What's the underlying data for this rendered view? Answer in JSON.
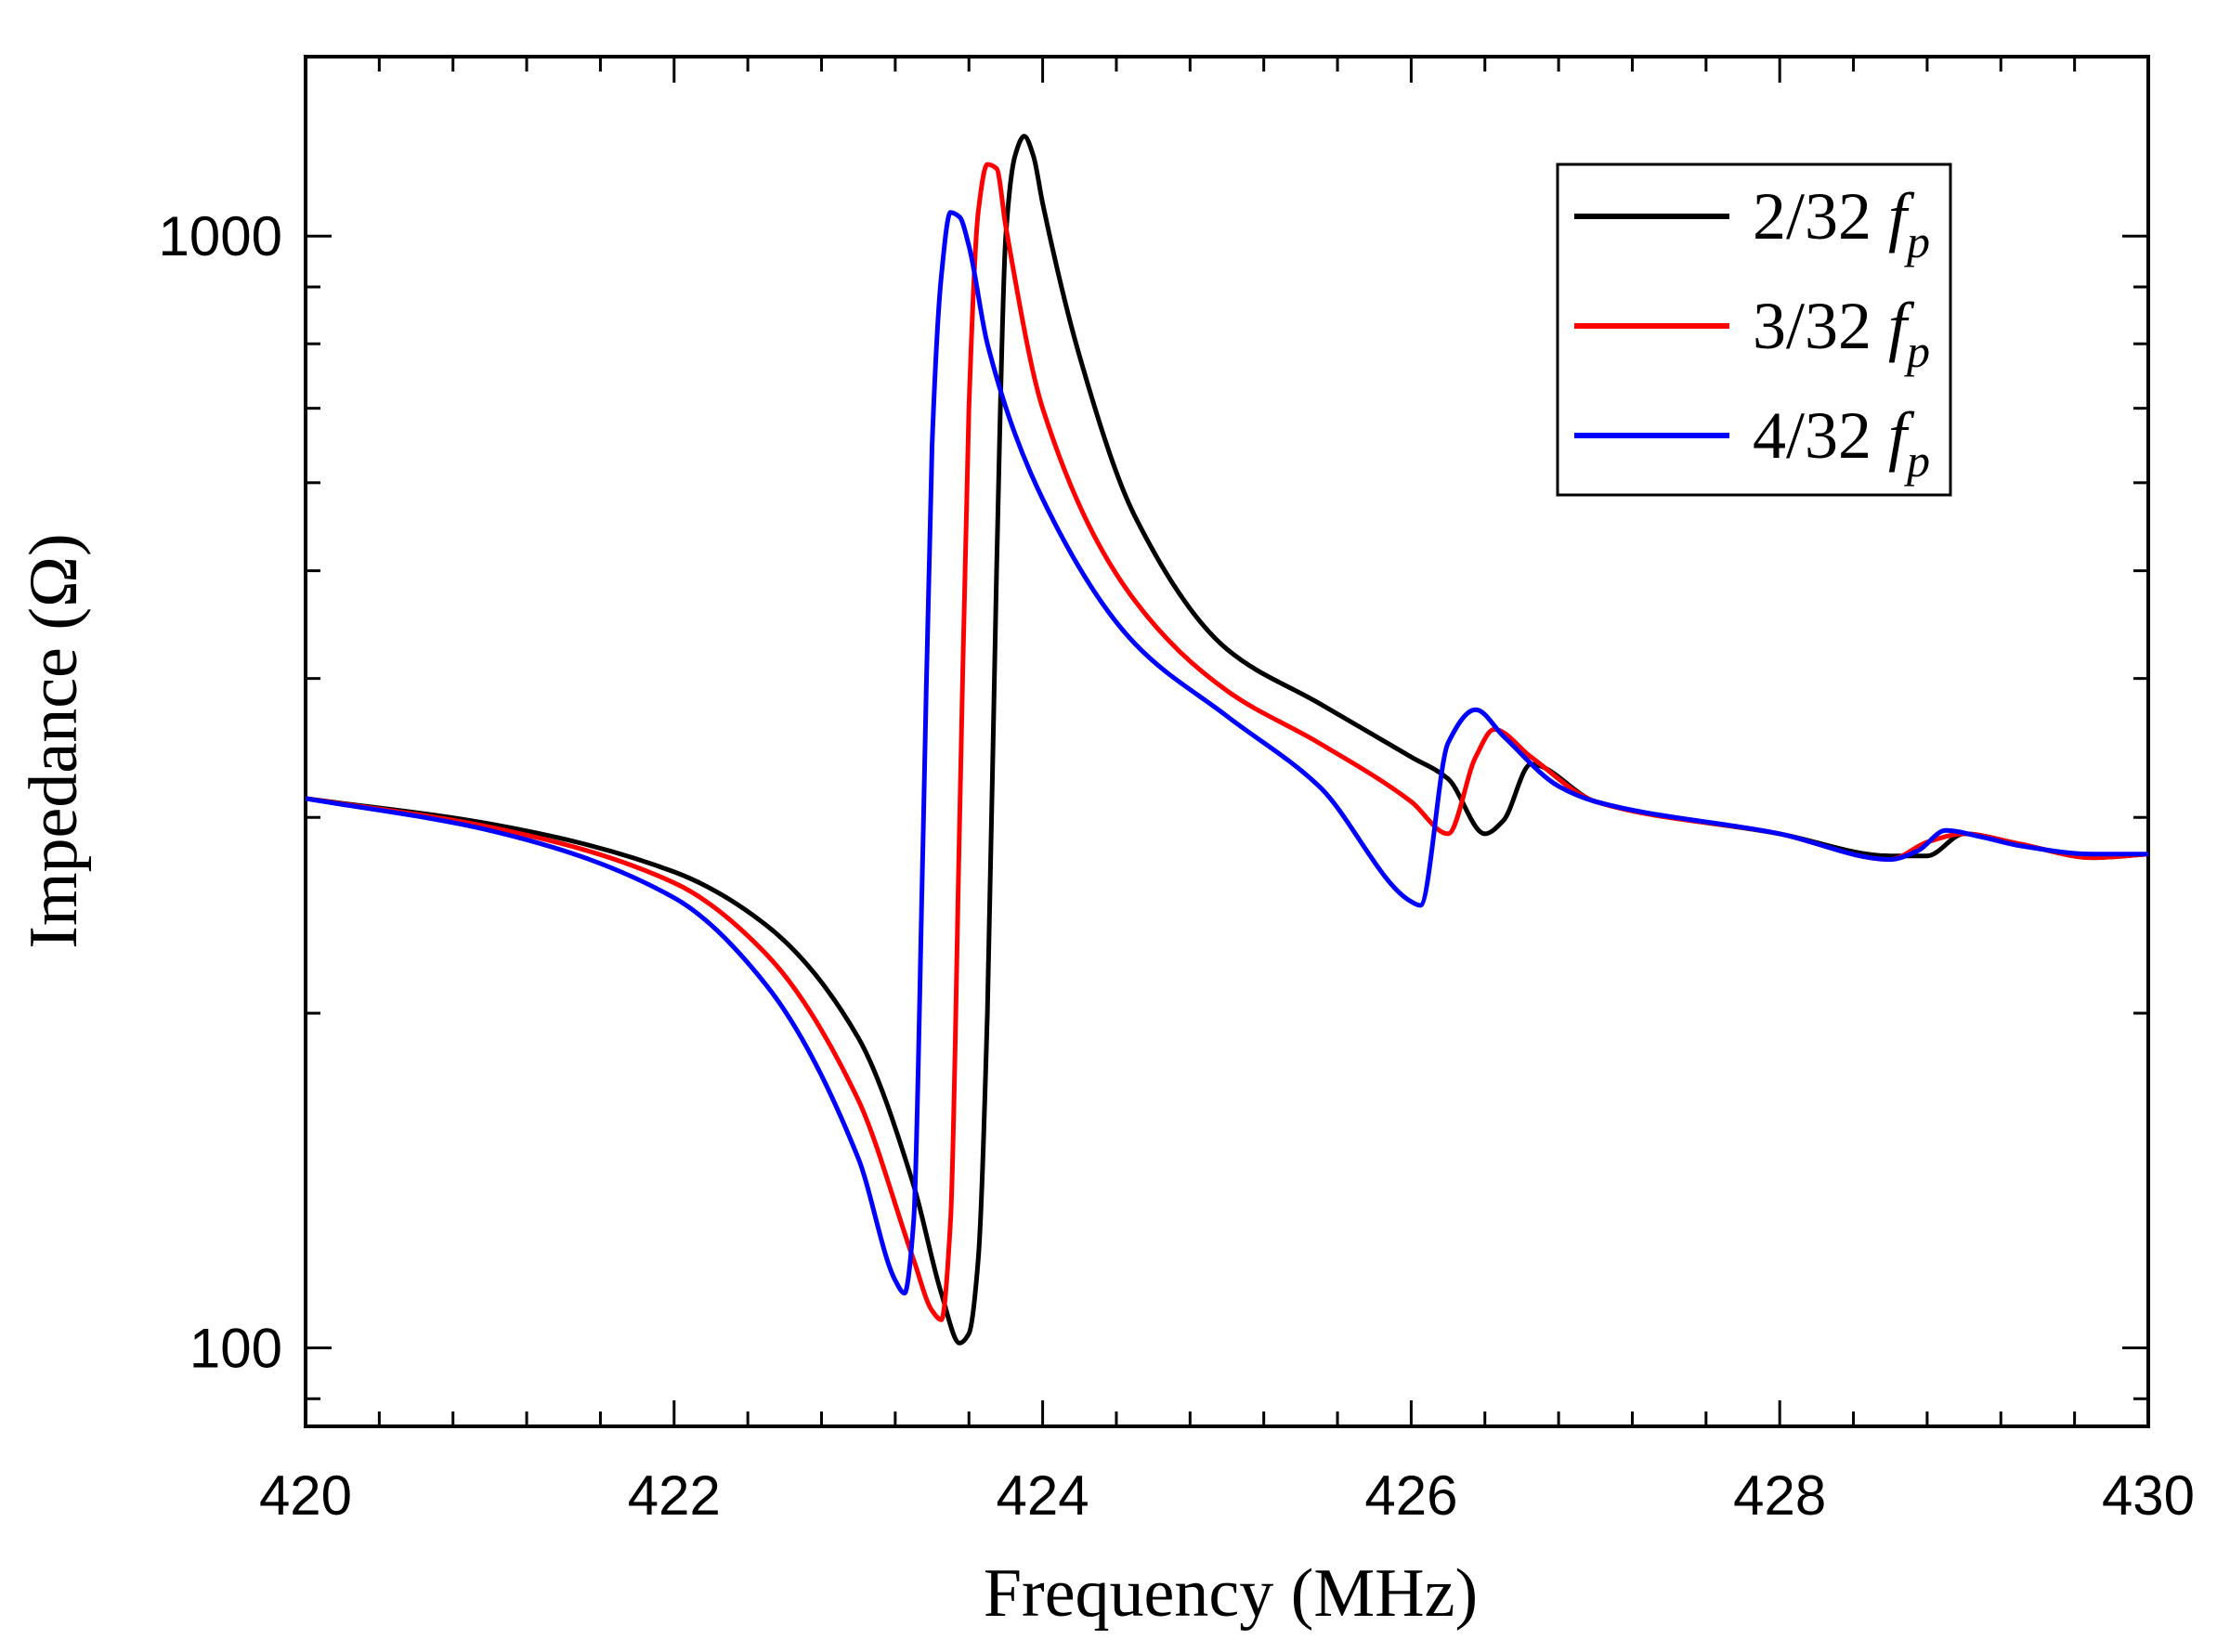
{
  "chart_data": {
    "type": "line",
    "title": "",
    "xlabel": "Frequency (MHz)",
    "ylabel": "Impedance (Ω)",
    "xlim": [
      420,
      430
    ],
    "ylim": [
      85,
      1450
    ],
    "yscale": "log",
    "grid": false,
    "legend_position": "top-right",
    "x_ticks": [
      420,
      422,
      424,
      426,
      428,
      430
    ],
    "x_tick_labels": [
      "420",
      "422",
      "424",
      "426",
      "428",
      "430"
    ],
    "y_ticks": [
      100,
      1000
    ],
    "y_tick_labels": [
      "100",
      "1000"
    ],
    "series": [
      {
        "name": "2/32 f_p",
        "label_prefix": "2/32",
        "label_symbol": "f",
        "label_sub": "p",
        "color": "#000000",
        "x": [
          420.0,
          421.0,
          422.0,
          422.5,
          423.0,
          423.3,
          423.45,
          423.55,
          423.6,
          423.65,
          423.7,
          423.75,
          423.8,
          423.85,
          423.9,
          423.95,
          424.0,
          424.2,
          424.5,
          425.0,
          425.5,
          426.0,
          426.2,
          426.4,
          426.5,
          426.65,
          427.0,
          428.0,
          428.6,
          428.8,
          429.0,
          429.3,
          429.7,
          430.0
        ],
        "y": [
          312,
          296,
          268,
          240,
          190,
          140,
          112,
          101,
          103,
          120,
          200,
          500,
          1000,
          1180,
          1230,
          1180,
          1070,
          780,
          560,
          425,
          380,
          340,
          325,
          290,
          298,
          335,
          310,
          290,
          277,
          277,
          290,
          284,
          276,
          278
        ]
      },
      {
        "name": "3/32 f_p",
        "label_prefix": "3/32",
        "label_symbol": "f",
        "label_sub": "p",
        "color": "#ff0000",
        "x": [
          420.0,
          421.0,
          422.0,
          422.5,
          423.0,
          423.3,
          423.4,
          423.45,
          423.5,
          423.55,
          423.6,
          423.65,
          423.7,
          423.75,
          423.8,
          424.0,
          424.5,
          425.0,
          425.5,
          426.0,
          426.2,
          426.35,
          426.45,
          426.65,
          427.0,
          428.0,
          428.6,
          428.8,
          429.0,
          429.3,
          429.7,
          430.0
        ],
        "y": [
          312,
          294,
          262,
          226,
          167,
          120,
          108,
          106,
          130,
          300,
          700,
          1050,
          1160,
          1150,
          1020,
          700,
          470,
          390,
          350,
          310,
          290,
          340,
          360,
          340,
          310,
          290,
          275,
          285,
          290,
          284,
          276,
          278
        ]
      },
      {
        "name": "4/32 f_p",
        "label_prefix": "4/32",
        "label_symbol": "f",
        "label_sub": "p",
        "color": "#0000ff",
        "x": [
          420.0,
          421.0,
          422.0,
          422.5,
          423.0,
          423.2,
          423.25,
          423.3,
          423.35,
          423.4,
          423.45,
          423.5,
          423.55,
          423.6,
          423.7,
          424.0,
          424.5,
          425.0,
          425.5,
          426.0,
          426.05,
          426.2,
          426.35,
          426.5,
          426.8,
          427.0,
          428.0,
          428.6,
          428.75,
          428.9,
          429.1,
          429.3,
          429.7,
          430.0
        ],
        "y": [
          312,
          292,
          254,
          212,
          148,
          115,
          112,
          130,
          280,
          650,
          920,
          1050,
          1040,
          980,
          800,
          580,
          430,
          370,
          320,
          252,
          250,
          350,
          375,
          355,
          320,
          310,
          290,
          275,
          280,
          292,
          288,
          283,
          278,
          278
        ]
      }
    ]
  }
}
